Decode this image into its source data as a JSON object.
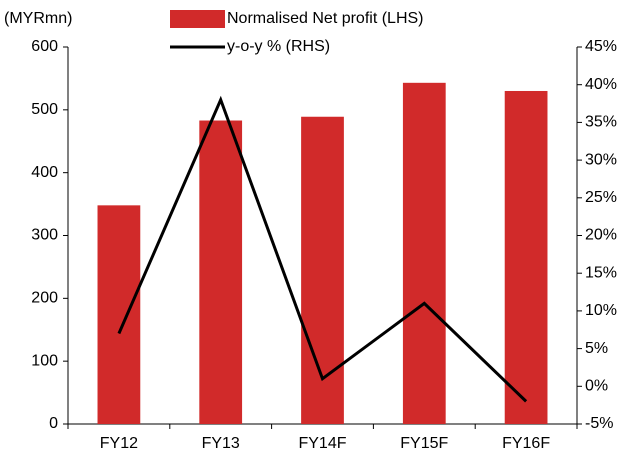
{
  "chart_data": {
    "type": "bar+line",
    "y_label": "(MYRmn)",
    "categories": [
      "FY12",
      "FY13",
      "FY14F",
      "FY15F",
      "FY16F"
    ],
    "series": [
      {
        "name": "Normalised Net profit (LHS)",
        "type": "bar",
        "color": "#d12a2a",
        "values": [
          348,
          483,
          489,
          543,
          530
        ]
      },
      {
        "name": "y-o-y % (RHS)",
        "type": "line",
        "color": "#000000",
        "axis": "y2",
        "values": [
          7,
          38,
          1,
          11,
          -2
        ]
      }
    ],
    "ylim": [
      0,
      600
    ],
    "yticks": [
      0,
      100,
      200,
      300,
      400,
      500,
      600
    ],
    "y2lim": [
      -5,
      45
    ],
    "y2ticks": [
      {
        "value": -5,
        "label": "-5%"
      },
      {
        "value": 0,
        "label": "0%"
      },
      {
        "value": 5,
        "label": "5%"
      },
      {
        "value": 10,
        "label": "10%"
      },
      {
        "value": 15,
        "label": "15%"
      },
      {
        "value": 20,
        "label": "20%"
      },
      {
        "value": 25,
        "label": "25%"
      },
      {
        "value": 30,
        "label": "30%"
      },
      {
        "value": 35,
        "label": "35%"
      },
      {
        "value": 40,
        "label": "40%"
      },
      {
        "value": 45,
        "label": "45%"
      }
    ],
    "grid": false
  }
}
